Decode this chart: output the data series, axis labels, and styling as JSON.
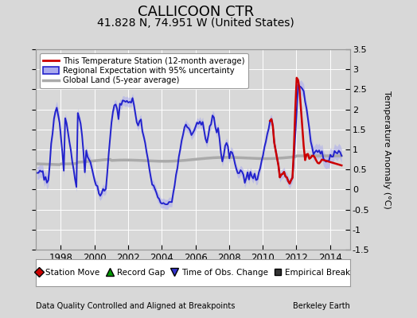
{
  "title": "CALLICOON CTR",
  "subtitle": "41.828 N, 74.951 W (United States)",
  "ylabel": "Temperature Anomaly (°C)",
  "xlabel_note": "Data Quality Controlled and Aligned at Breakpoints",
  "credit": "Berkeley Earth",
  "xlim": [
    1996.5,
    2015.2
  ],
  "ylim": [
    -1.5,
    3.5
  ],
  "yticks": [
    -1.5,
    -1.0,
    -0.5,
    0.0,
    0.5,
    1.0,
    1.5,
    2.0,
    2.5,
    3.0,
    3.5
  ],
  "xticks": [
    1998,
    2000,
    2002,
    2004,
    2006,
    2008,
    2010,
    2012,
    2014
  ],
  "bg_color": "#d8d8d8",
  "plot_bg_color": "#d8d8d8",
  "grid_color": "#ffffff",
  "title_fontsize": 13,
  "subtitle_fontsize": 10,
  "blue_color": "#2222cc",
  "blue_fill": "#aaaaee",
  "red_color": "#cc0000",
  "gray_color": "#aaaaaa",
  "legend_items": [
    {
      "label": "This Temperature Station (12-month average)",
      "color": "#cc0000",
      "lw": 2
    },
    {
      "label": "Regional Expectation with 95% uncertainty",
      "color": "#2222cc",
      "lw": 2
    },
    {
      "label": "Global Land (5-year average)",
      "color": "#aaaaaa",
      "lw": 3
    }
  ],
  "marker_legend": [
    {
      "label": "Station Move",
      "color": "#cc0000",
      "marker": "D"
    },
    {
      "label": "Record Gap",
      "color": "#009900",
      "marker": "^"
    },
    {
      "label": "Time of Obs. Change",
      "color": "#3333cc",
      "marker": "v"
    },
    {
      "label": "Empirical Break",
      "color": "#333333",
      "marker": "s"
    }
  ]
}
